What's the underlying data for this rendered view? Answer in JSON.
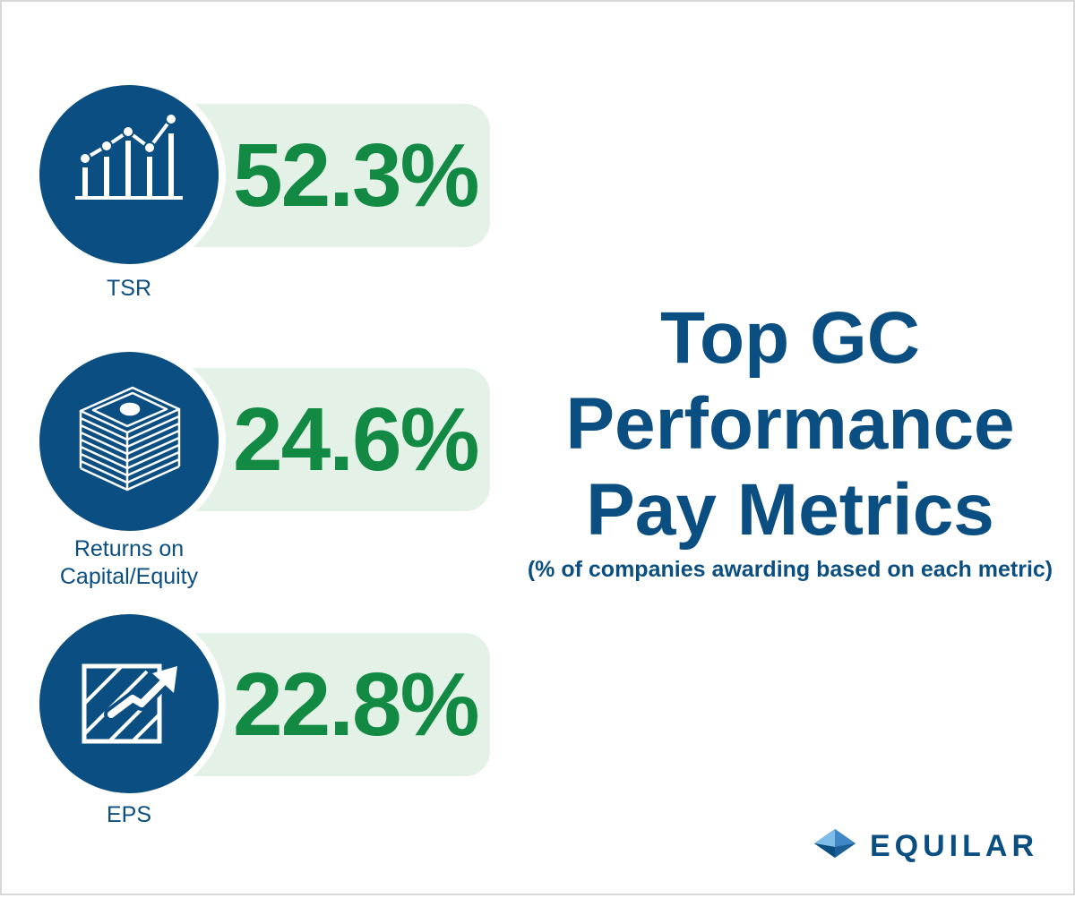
{
  "chart_data": {
    "type": "bar",
    "title": "Top GC Performance Pay Metrics",
    "subtitle": "(% of companies awarding based on each metric)",
    "categories": [
      "TSR",
      "Returns on Capital/Equity",
      "EPS"
    ],
    "values": [
      52.3,
      24.6,
      22.8
    ],
    "unit": "%"
  },
  "metrics": [
    {
      "value_text": "52.3%",
      "label_lines": [
        "TSR"
      ],
      "icon": "bar-line-chart-icon"
    },
    {
      "value_text": "24.6%",
      "label_lines": [
        "Returns on",
        "Capital/Equity"
      ],
      "icon": "money-stack-icon"
    },
    {
      "value_text": "22.8%",
      "label_lines": [
        "EPS"
      ],
      "icon": "growth-arrow-icon"
    }
  ],
  "title_lines": [
    "Top GC",
    "Performance",
    "Pay Metrics"
  ],
  "subtitle": "(% of companies awarding based on each metric)",
  "logo": {
    "text": "EQUILAR"
  },
  "colors": {
    "navy": "#0b4f82",
    "green": "#138a44",
    "pill_bg": "#e3f1e6",
    "background": "#ffffff"
  }
}
